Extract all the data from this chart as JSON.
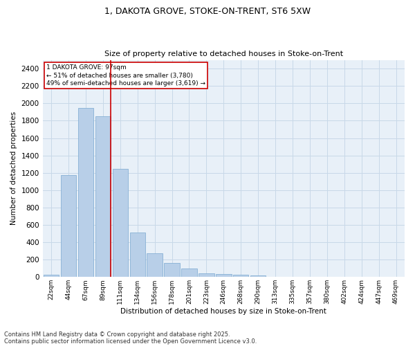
{
  "title1": "1, DAKOTA GROVE, STOKE-ON-TRENT, ST6 5XW",
  "title2": "Size of property relative to detached houses in Stoke-on-Trent",
  "xlabel": "Distribution of detached houses by size in Stoke-on-Trent",
  "ylabel": "Number of detached properties",
  "categories": [
    "22sqm",
    "44sqm",
    "67sqm",
    "89sqm",
    "111sqm",
    "134sqm",
    "156sqm",
    "178sqm",
    "201sqm",
    "223sqm",
    "246sqm",
    "268sqm",
    "290sqm",
    "313sqm",
    "335sqm",
    "357sqm",
    "380sqm",
    "402sqm",
    "424sqm",
    "447sqm",
    "469sqm"
  ],
  "values": [
    25,
    1175,
    1950,
    1850,
    1245,
    515,
    270,
    160,
    95,
    45,
    35,
    30,
    15,
    5,
    2,
    1,
    1,
    0,
    0,
    0,
    0
  ],
  "bar_color": "#b8cfe8",
  "bar_edge_color": "#7aa8d0",
  "grid_color": "#c8d8e8",
  "bg_color": "#e8f0f8",
  "property_label": "1 DAKOTA GROVE: 97sqm",
  "pct_smaller": 51,
  "pct_larger": 49,
  "n_smaller": 3780,
  "n_larger": 3619,
  "vline_color": "#cc0000",
  "annotation_box_color": "#cc0000",
  "ylim": [
    0,
    2500
  ],
  "yticks": [
    0,
    200,
    400,
    600,
    800,
    1000,
    1200,
    1400,
    1600,
    1800,
    2000,
    2200,
    2400
  ],
  "footnote1": "Contains HM Land Registry data © Crown copyright and database right 2025.",
  "footnote2": "Contains public sector information licensed under the Open Government Licence v3.0.",
  "vline_bin_index": 3,
  "figwidth": 6.0,
  "figheight": 5.0,
  "dpi": 100
}
